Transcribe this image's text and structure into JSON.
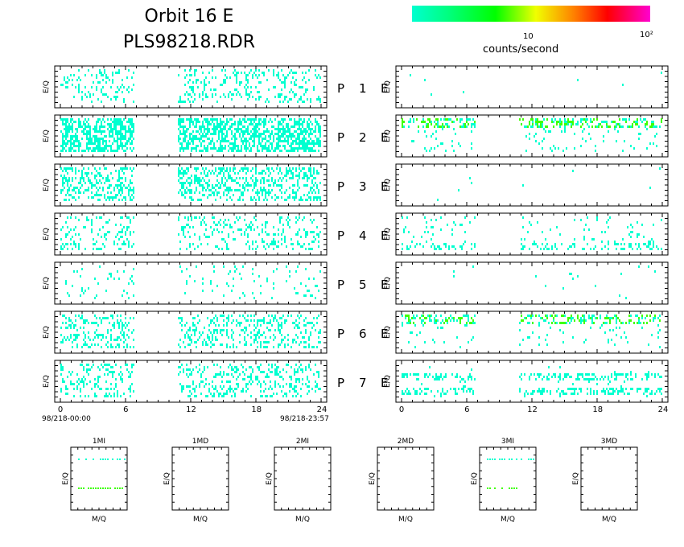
{
  "header": {
    "title_line1": "Orbit 16 E",
    "title_line2": "PLS98218.RDR"
  },
  "colorbar": {
    "tick_10": "10",
    "tick_100": "10²",
    "label": "counts/second",
    "colors": [
      "#00ffd0",
      "#00ff00",
      "#f0ff00",
      "#ff8000",
      "#ff0000",
      "#ff00d0"
    ]
  },
  "chart_data": [
    {
      "type": "heatmap",
      "panels": [
        "P 1",
        "P 2",
        "P 3",
        "P 4",
        "P 5",
        "P 6",
        "P 7"
      ],
      "columns": [
        "left",
        "E"
      ],
      "ylabel": "E/Q",
      "xticks": [
        "0",
        "6",
        "12",
        "18",
        "24"
      ],
      "xlim": [
        0,
        24
      ],
      "time_start": "98/218-00:00",
      "time_end": "98/218-23:57",
      "data_gap_hours": [
        7,
        11
      ]
    },
    {
      "type": "heatmap",
      "panels": [
        "1MI",
        "1MD",
        "2MI",
        "2MD",
        "3MI",
        "3MD"
      ],
      "xlabel": "M/Q",
      "ylabel": "E/Q"
    }
  ]
}
